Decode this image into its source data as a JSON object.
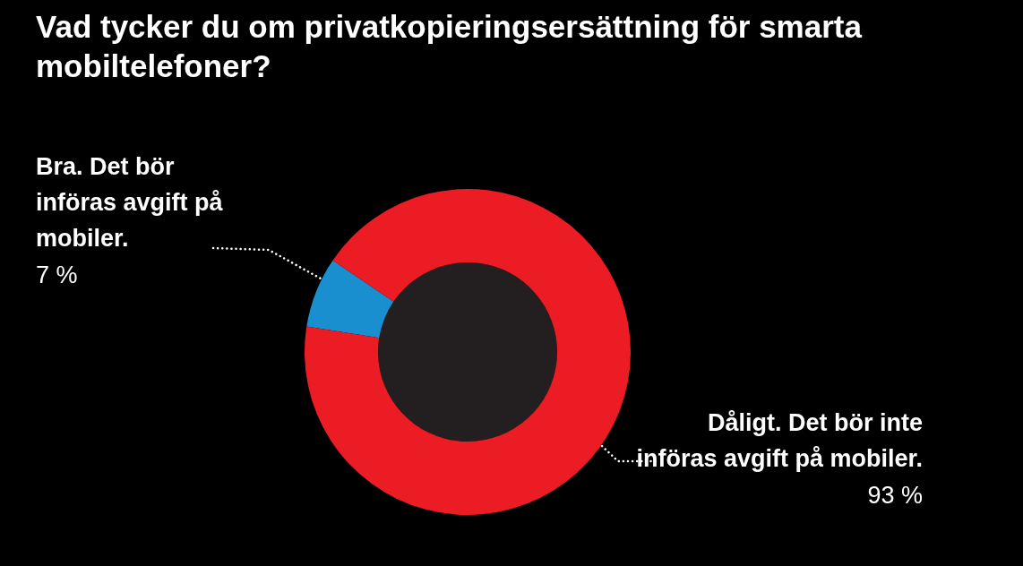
{
  "chart_data": {
    "type": "donut",
    "title": "Vad tycker du om privatkopieringsersättning för smarta mobiltelefoner?",
    "categories": [
      "Bra. Det bör införas avgift på mobiler.",
      "Dåligt. Det bör inte införas avgift på mobiler."
    ],
    "values": [
      7,
      93
    ],
    "colors": [
      "#1a8fd0",
      "#ec1c24"
    ],
    "value_labels": [
      "7 %",
      "93 %"
    ],
    "legend": false
  }
}
